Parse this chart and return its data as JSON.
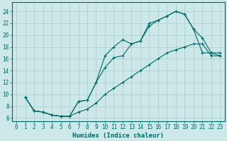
{
  "xlabel": "Humidex (Indice chaleur)",
  "xlim": [
    -0.5,
    23.5
  ],
  "ylim": [
    5.5,
    25.5
  ],
  "xticks": [
    0,
    1,
    2,
    3,
    4,
    5,
    6,
    7,
    8,
    9,
    10,
    11,
    12,
    13,
    14,
    15,
    16,
    17,
    18,
    19,
    20,
    21,
    22,
    23
  ],
  "yticks": [
    6,
    8,
    10,
    12,
    14,
    16,
    18,
    20,
    22,
    24
  ],
  "bg_color": "#cce8e8",
  "grid_color": "#b0d0d0",
  "line_color": "#006868",
  "line1_x": [
    1,
    2,
    3,
    4,
    5,
    6,
    7,
    8,
    9,
    10,
    11,
    12,
    13,
    14,
    15,
    16,
    17,
    18,
    19,
    20,
    21,
    22,
    23
  ],
  "line1_y": [
    9.5,
    7.2,
    7.0,
    6.5,
    6.3,
    6.3,
    8.8,
    9.0,
    12.0,
    16.5,
    18.0,
    19.2,
    18.5,
    19.0,
    22.0,
    22.5,
    23.2,
    24.0,
    23.5,
    21.0,
    17.0,
    17.0,
    16.5
  ],
  "line2_x": [
    1,
    2,
    3,
    4,
    5,
    6,
    7,
    8,
    9,
    10,
    11,
    12,
    13,
    14,
    15,
    16,
    17,
    18,
    19,
    20,
    21,
    22,
    23
  ],
  "line2_y": [
    9.5,
    7.2,
    7.0,
    6.5,
    6.3,
    6.3,
    8.8,
    9.0,
    12.0,
    14.5,
    16.2,
    16.5,
    18.5,
    19.0,
    21.5,
    22.5,
    23.2,
    24.0,
    23.5,
    21.0,
    19.5,
    17.0,
    17.0
  ],
  "line3_x": [
    1,
    2,
    3,
    4,
    5,
    6,
    7,
    8,
    9,
    10,
    11,
    12,
    13,
    14,
    15,
    16,
    17,
    18,
    19,
    20,
    21,
    22,
    23
  ],
  "line3_y": [
    9.5,
    7.2,
    7.0,
    6.5,
    6.3,
    6.3,
    7.0,
    7.5,
    8.5,
    10.0,
    11.0,
    12.0,
    13.0,
    14.0,
    15.0,
    16.0,
    17.0,
    17.5,
    18.0,
    18.5,
    18.5,
    16.5,
    16.5
  ]
}
